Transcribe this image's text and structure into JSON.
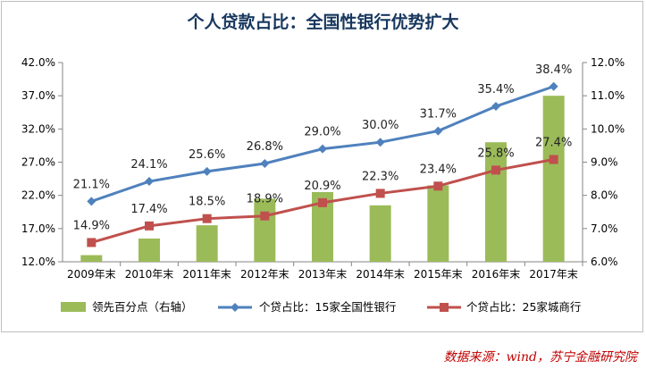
{
  "colors": {
    "bar": "#9bbb59",
    "national": "#4f81bd",
    "city": "#c0504d",
    "title": "#17375e",
    "source": "#c00000"
  },
  "chart_data": {
    "type": "bar+line",
    "title": "个人贷款占比：全国性银行优势扩大",
    "categories": [
      "2009年末",
      "2010年末",
      "2011年末",
      "2012年末",
      "2013年末",
      "2014年末",
      "2015年末",
      "2016年末",
      "2017年末"
    ],
    "left_axis": {
      "ylim": [
        12.0,
        42.0
      ],
      "ticks": [
        "12.0%",
        "17.0%",
        "22.0%",
        "27.0%",
        "32.0%",
        "37.0%",
        "42.0%"
      ],
      "tick_values": [
        12,
        17,
        22,
        27,
        32,
        37,
        42
      ]
    },
    "right_axis": {
      "ylim": [
        6.0,
        12.0
      ],
      "ticks": [
        "6.0%",
        "7.0%",
        "8.0%",
        "9.0%",
        "10.0%",
        "11.0%",
        "12.0%"
      ],
      "tick_values": [
        6,
        7,
        8,
        9,
        10,
        11,
        12
      ]
    },
    "series": [
      {
        "name": "领先百分点（右轴）",
        "type": "bar",
        "axis": "right",
        "values": [
          6.2,
          6.7,
          7.1,
          7.9,
          8.1,
          7.7,
          8.3,
          9.6,
          11.0
        ]
      },
      {
        "name": "个贷占比：15家全国性银行",
        "type": "line",
        "axis": "left",
        "values": [
          21.1,
          24.1,
          25.6,
          26.8,
          29.0,
          30.0,
          31.7,
          35.4,
          38.4
        ],
        "labels": [
          "21.1%",
          "24.1%",
          "25.6%",
          "26.8%",
          "29.0%",
          "30.0%",
          "31.7%",
          "35.4%",
          "38.4%"
        ]
      },
      {
        "name": "个贷占比：25家城商行",
        "type": "line",
        "axis": "left",
        "values": [
          14.9,
          17.4,
          18.5,
          18.9,
          20.9,
          22.3,
          23.4,
          25.8,
          27.4
        ],
        "labels": [
          "14.9%",
          "17.4%",
          "18.5%",
          "18.9%",
          "20.9%",
          "22.3%",
          "23.4%",
          "25.8%",
          "27.4%"
        ]
      }
    ],
    "legend": [
      "领先百分点（右轴）",
      "个贷占比：15家全国性银行",
      "个贷占比：25家城商行"
    ],
    "legend_position": "bottom"
  },
  "source_note": "数据来源：wind，苏宁金融研究院"
}
